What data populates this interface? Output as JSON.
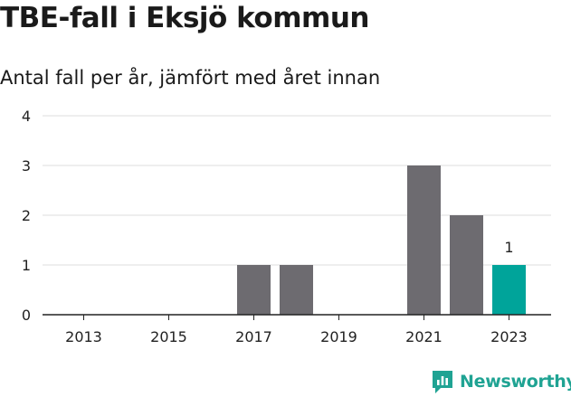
{
  "chart_data": {
    "type": "bar",
    "title": "TBE-fall i Eksjö kommun",
    "subtitle": "Antal fall per år, jämfört med året innan",
    "categories": [
      "2013",
      "2014",
      "2015",
      "2016",
      "2017",
      "2018",
      "2019",
      "2020",
      "2021",
      "2022",
      "2023"
    ],
    "values": [
      0,
      0,
      0,
      0,
      1,
      1,
      0,
      0,
      3,
      2,
      1
    ],
    "x_tick_labels": [
      "2013",
      "2015",
      "2017",
      "2019",
      "2021",
      "2023"
    ],
    "y_ticks": [
      0,
      1,
      2,
      3,
      4
    ],
    "ylim": [
      0,
      4
    ],
    "grid": true,
    "highlight": {
      "category": "2023",
      "label": "1"
    },
    "colors": {
      "bar": "#6d6b70",
      "highlight": "#00a49a",
      "grid": "#dcdcdc",
      "axis": "#222222"
    }
  },
  "brand": {
    "name": "Newsworthy",
    "icon": "newsworthy-logo-icon",
    "color": "#1fa393"
  }
}
